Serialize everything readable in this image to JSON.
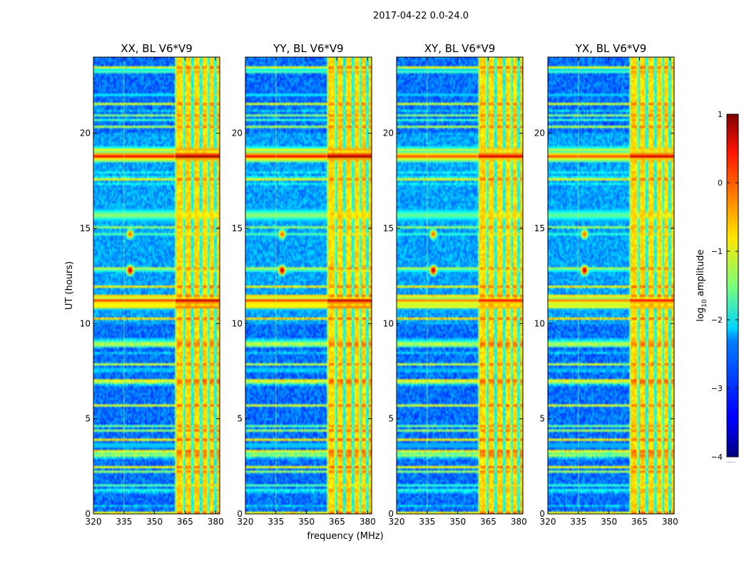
{
  "figure": {
    "suptitle": "2017-04-22 0.0-24.0",
    "xlabel": "frequency (MHz)",
    "ylabel": "UT (hours)"
  },
  "chart_data": {
    "type": "heatmap",
    "title": "2017-04-22 0.0-24.0",
    "xlabel": "frequency (MHz)",
    "ylabel": "UT (hours)",
    "xlim": [
      320,
      382
    ],
    "ylim": [
      0,
      24
    ],
    "xticks": [
      320,
      335,
      350,
      365,
      380
    ],
    "yticks": [
      0,
      5,
      10,
      15,
      20
    ],
    "panels": [
      {
        "title": "XX, BL V6*V9",
        "pol": "XX"
      },
      {
        "title": "YY, BL V6*V9",
        "pol": "YY"
      },
      {
        "title": "XY, BL V6*V9",
        "pol": "XY"
      },
      {
        "title": "YX, BL V6*V9",
        "pol": "YX"
      }
    ],
    "colorbar": {
      "label": "log10 amplitude",
      "label_base": "log",
      "label_sub": "10",
      "label_rest": " amplitude",
      "range": [
        -4,
        1
      ],
      "ticks": [
        1,
        0,
        -1,
        -2,
        -3,
        -4
      ],
      "tick_labels": [
        "1",
        "0",
        "−1",
        "−2",
        "−3",
        "−4"
      ],
      "colormap": "jet",
      "extra_marker": "......"
    },
    "features": {
      "rfi_band_mhz": [
        360,
        382
      ],
      "rfi_channels_mhz": [
        362.5,
        366.5,
        370.5,
        374.5,
        378.5,
        381.5
      ],
      "gap_channels_mhz": [
        364.7,
        368.7,
        372.7,
        376.7,
        380.0
      ],
      "vertical_lines_mhz": [
        335,
        360
      ],
      "bright_rows_ut": [
        {
          "ut": 18.8,
          "level": 0.9,
          "width": 0.35
        },
        {
          "ut": 19.1,
          "level": 0.7,
          "width": 0.2
        },
        {
          "ut": 15.7,
          "level": 0.55,
          "width": 0.5
        },
        {
          "ut": 11.2,
          "level": 0.85,
          "width": 0.3
        },
        {
          "ut": 10.9,
          "level": 0.75,
          "width": 0.2
        },
        {
          "ut": 12.8,
          "level": 0.45,
          "width": 0.2
        },
        {
          "ut": 14.7,
          "level": 0.45,
          "width": 0.2
        },
        {
          "ut": 23.3,
          "level": 0.45,
          "width": 0.15
        },
        {
          "ut": 22.0,
          "level": 0.4,
          "width": 0.15
        },
        {
          "ut": 3.6,
          "level": 0.45,
          "width": 0.15
        },
        {
          "ut": 1.5,
          "level": 0.45,
          "width": 0.15
        },
        {
          "ut": 7.6,
          "level": 0.35,
          "width": 0.15
        },
        {
          "ut": 9.1,
          "level": 0.35,
          "width": 0.15
        }
      ],
      "point_sources": [
        {
          "mhz": 338,
          "ut": 12.8,
          "level": 0.95
        },
        {
          "mhz": 338,
          "ut": 14.7,
          "level": 0.8
        }
      ]
    }
  }
}
